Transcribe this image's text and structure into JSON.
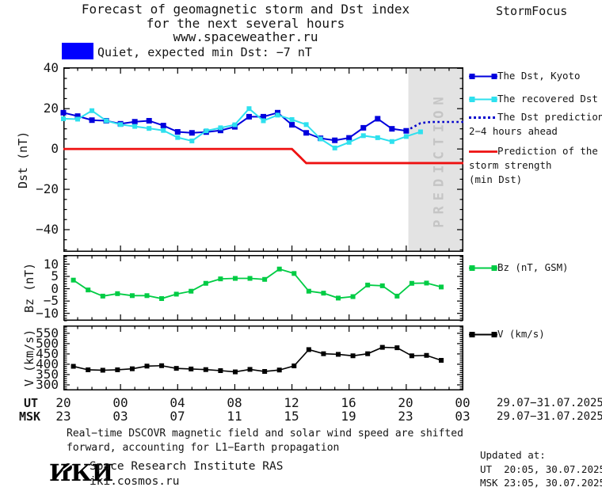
{
  "header": {
    "title_line1": "Forecast of geomagnetic storm and Dst index",
    "title_line2": "for the next several hours",
    "title_line3": "www.spaceweather.ru",
    "brand": "StormFocus"
  },
  "status": {
    "label": "Quiet, expected min Dst: −7 nT",
    "swatch_color": "#0000ff"
  },
  "axes": {
    "x": {
      "ut_label": "UT",
      "msk_label": "MSK",
      "ut_ticks": [
        "20",
        "00",
        "04",
        "08",
        "12",
        "16",
        "20",
        "00"
      ],
      "msk_ticks": [
        "23",
        "03",
        "07",
        "11",
        "15",
        "19",
        "23",
        "03"
      ],
      "ut_date": "29.07−31.07.2025",
      "msk_date": "29.07−31.07.2025"
    }
  },
  "chart_data": [
    {
      "type": "line",
      "ylabel": "Dst (nT)",
      "ylim": [
        -51,
        40.5
      ],
      "yticks": [
        40,
        20,
        0,
        -20,
        -40
      ],
      "xlim_hours": [
        0,
        28
      ],
      "x_major_step_hours": 4,
      "prediction_band": {
        "start_hour": 24.15,
        "label": "PREDICTION",
        "fill": "#e3e3e3",
        "text_color": "#c5c5c5"
      },
      "series": [
        {
          "name": "The Dst, Kyoto",
          "color": "#0000dd",
          "width": 2,
          "dash": "",
          "marker": 7,
          "x": [
            0,
            1,
            2,
            3,
            4,
            5,
            6,
            7,
            8,
            9,
            10,
            11,
            12,
            13,
            14,
            15,
            16,
            17,
            18,
            19,
            20,
            21,
            22,
            23,
            24
          ],
          "values": [
            18,
            16.3,
            14.3,
            14,
            12.5,
            13.5,
            14,
            11.6,
            8.5,
            8,
            8.4,
            9.2,
            11,
            16,
            16,
            18,
            12,
            8,
            5.3,
            4.3,
            5.5,
            10.5,
            15,
            10,
            9
          ]
        },
        {
          "name": "The recovered Dst",
          "color": "#2ee0ee",
          "width": 2,
          "dash": "",
          "marker": 6,
          "x": [
            0,
            1,
            2,
            3,
            4,
            5,
            6,
            7,
            8,
            9,
            10,
            11,
            12,
            13,
            14,
            15,
            16,
            17,
            18,
            19,
            20,
            21,
            22,
            23,
            24,
            25
          ],
          "values": [
            15,
            14.8,
            19,
            14,
            12.1,
            11.2,
            10.2,
            9.2,
            5.7,
            4,
            9,
            10.5,
            12,
            20,
            14,
            16.8,
            14.6,
            12.1,
            5,
            0.5,
            3.3,
            6.6,
            5.6,
            3.7,
            6.2,
            8.5
          ]
        },
        {
          "name": "The Dst prediction 2−4 hours ahead",
          "color": "#0000cc",
          "width": 2.6,
          "dash": "2.6 3.4",
          "marker": 0,
          "x": [
            24,
            25,
            25.5,
            26,
            27,
            28
          ],
          "values": [
            9,
            12.8,
            13.3,
            13.4,
            13.4,
            13.4
          ]
        },
        {
          "name": "Prediction of the storm strength (min Dst)",
          "color": "#ee1111",
          "width": 2.8,
          "dash": "",
          "marker": 0,
          "x": [
            0,
            16,
            17,
            28
          ],
          "values": [
            0,
            0,
            -7,
            -7
          ]
        }
      ]
    },
    {
      "type": "line",
      "ylabel": "Bz (nT)",
      "ylim": [
        -13,
        13.7
      ],
      "yticks": [
        10,
        5,
        0,
        -5,
        -10
      ],
      "xlim_hours": [
        0,
        28
      ],
      "x_major_step_hours": 4,
      "series": [
        {
          "name": "Bz (nT, GSM)",
          "color": "#00cc44",
          "width": 1.8,
          "dash": "",
          "marker": 6,
          "x": [
            0.7,
            1.73,
            2.76,
            3.79,
            4.82,
            5.85,
            6.88,
            7.91,
            8.94,
            9.97,
            11,
            12.03,
            13.06,
            14.09,
            15.12,
            16.15,
            17.18,
            18.21,
            19.24,
            20.27,
            21.3,
            22.33,
            23.36,
            24.39,
            25.42,
            26.45
          ],
          "values": [
            3.5,
            -0.5,
            -3,
            -2,
            -2.8,
            -2.8,
            -4,
            -2.2,
            -1,
            2.2,
            4,
            4.2,
            4.2,
            3.8,
            8,
            6.2,
            -1,
            -1.8,
            -3.8,
            -3.2,
            1.5,
            1.2,
            -3,
            2.2,
            2.3,
            0.7
          ]
        }
      ]
    },
    {
      "type": "line",
      "ylabel": "V (km/s)",
      "ylim": [
        273,
        588
      ],
      "yticks": [
        550,
        500,
        450,
        400,
        350,
        300
      ],
      "xlim_hours": [
        0,
        28
      ],
      "x_major_step_hours": 4,
      "series": [
        {
          "name": "V (km/s)",
          "color": "#000000",
          "width": 1.6,
          "dash": "",
          "marker": 6,
          "x": [
            0.7,
            1.73,
            2.76,
            3.79,
            4.82,
            5.85,
            6.88,
            7.91,
            8.94,
            9.97,
            11,
            12.03,
            13.06,
            14.09,
            15.12,
            16.15,
            17.18,
            18.21,
            19.24,
            20.27,
            21.3,
            22.33,
            23.36,
            24.39,
            25.42,
            26.45
          ],
          "values": [
            390,
            373,
            371,
            373,
            378,
            391,
            393,
            380,
            377,
            374,
            369,
            363,
            375,
            365,
            372,
            392,
            471,
            451,
            448,
            441,
            451,
            482,
            480,
            441,
            443,
            419
          ]
        }
      ]
    }
  ],
  "legend": {
    "items": [
      {
        "lines": [
          "The Dst, Kyoto"
        ],
        "color": "#0000dd",
        "style": "marker"
      },
      {
        "lines": [
          "The recovered Dst"
        ],
        "color": "#2ee0ee",
        "style": "marker"
      },
      {
        "lines": [
          "The Dst prediction",
          "2−4 hours ahead"
        ],
        "color": "#0000cc",
        "style": "dotted"
      },
      {
        "lines": [
          "Prediction of the",
          "storm strength",
          "(min Dst)"
        ],
        "color": "#ee1111",
        "style": "line"
      },
      {
        "lines": [
          "Bz (nT, GSM)"
        ],
        "color": "#00cc44",
        "style": "marker"
      },
      {
        "lines": [
          "V (km/s)"
        ],
        "color": "#000000",
        "style": "marker"
      }
    ]
  },
  "footer": {
    "note_line1": "Real−time DSCOVR magnetic field and solar wind speed are shifted",
    "note_line2": "forward, accounting for L1−Earth propagation",
    "logo_text": "ИКИ",
    "institute": "Space Research Institute RAS",
    "site": "iki.cosmos.ru",
    "updated_heading": "Updated at:",
    "updated_ut": "UT  20:05, 30.07.2025",
    "updated_msk": "MSK 23:05, 30.07.2025"
  }
}
